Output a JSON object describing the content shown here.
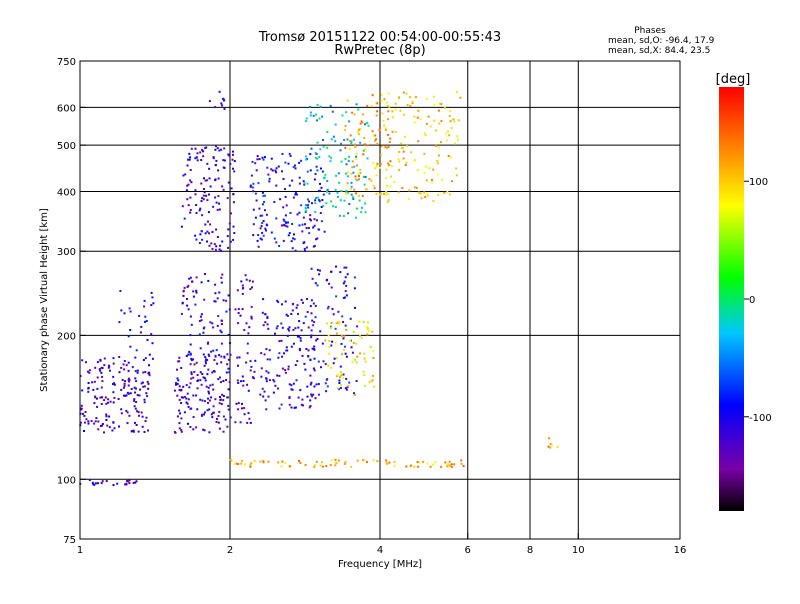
{
  "chart_data": {
    "type": "scatter",
    "title_line1": "Tromsø 20151122 00:54:00-00:55:43",
    "title_line2": "RwPretec (8p)",
    "stats": {
      "heading": "Phases",
      "line_o": "mean, sd,O: -96.4, 17.9",
      "line_x": "mean, sd,X:  84.4, 23.5"
    },
    "xlabel": "Frequency [MHz]",
    "ylabel": "Stationary phase Virtual Height [km]",
    "x_scale": "log",
    "y_scale": "log",
    "xlim": [
      1,
      16
    ],
    "ylim": [
      75,
      750
    ],
    "x_ticks": [
      1,
      2,
      4,
      6,
      8,
      10,
      16
    ],
    "x_tick_labels": [
      "1",
      "2",
      "4",
      "6",
      "8",
      "10",
      "16"
    ],
    "y_ticks": [
      75,
      100,
      200,
      300,
      400,
      500,
      600,
      750
    ],
    "y_tick_labels": [
      "75",
      "100",
      "200",
      "300",
      "400",
      "500",
      "600",
      "750"
    ],
    "x_gridlines": [
      2,
      4,
      6,
      8,
      10
    ],
    "y_gridlines": [
      100,
      200,
      300,
      400,
      500,
      600
    ],
    "grid": true,
    "colorbar": {
      "label": "[deg]",
      "range": [
        -180,
        180
      ],
      "ticks": [
        100,
        0,
        -100
      ],
      "tick_labels": [
        "100",
        "0",
        "-100"
      ],
      "colors": [
        "#000000",
        "#7a00a8",
        "#0000ff",
        "#00c8ff",
        "#00ff00",
        "#ffff00",
        "#ff8000",
        "#ff0000"
      ]
    },
    "series": [
      {
        "freq": [
          1.0,
          1.3
        ],
        "height": [
          97,
          100
        ],
        "phase": -105,
        "points": 22
      },
      {
        "freq": [
          1.0,
          1.38
        ],
        "height": [
          125,
          180
        ],
        "phase": -105,
        "points": 180
      },
      {
        "freq": [
          1.18,
          1.42
        ],
        "height": [
          175,
          255
        ],
        "phase": -100,
        "points": 30
      },
      {
        "freq": [
          1.55,
          2.02
        ],
        "height": [
          125,
          185
        ],
        "phase": -100,
        "points": 160
      },
      {
        "freq": [
          1.6,
          2.0
        ],
        "height": [
          180,
          270
        ],
        "phase": -100,
        "points": 80
      },
      {
        "freq": [
          2.05,
          2.25
        ],
        "height": [
          130,
          270
        ],
        "phase": -105,
        "points": 60
      },
      {
        "freq": [
          2.3,
          3.0
        ],
        "height": [
          140,
          240
        ],
        "phase": -95,
        "points": 150
      },
      {
        "freq": [
          2.9,
          3.6
        ],
        "height": [
          150,
          280
        ],
        "phase": -90,
        "points": 90
      },
      {
        "freq": [
          3.1,
          3.9
        ],
        "height": [
          150,
          215
        ],
        "phase": 90,
        "points": 70
      },
      {
        "freq": [
          1.6,
          2.05
        ],
        "height": [
          300,
          500
        ],
        "phase": -100,
        "points": 140
      },
      {
        "freq": [
          1.82,
          1.98
        ],
        "height": [
          590,
          650
        ],
        "phase": -100,
        "points": 10
      },
      {
        "freq": [
          2.2,
          3.1
        ],
        "height": [
          300,
          480
        ],
        "phase": -90,
        "points": 170
      },
      {
        "freq": [
          2.8,
          3.8
        ],
        "height": [
          350,
          610
        ],
        "phase": -20,
        "points": 120
      },
      {
        "freq": [
          3.4,
          4.2
        ],
        "height": [
          390,
          640
        ],
        "phase": 110,
        "points": 100
      },
      {
        "freq": [
          4.1,
          5.8
        ],
        "height": [
          380,
          650
        ],
        "phase": 100,
        "points": 130
      },
      {
        "freq": [
          2.0,
          5.9
        ],
        "height": [
          106,
          110
        ],
        "phase": 110,
        "points": 80
      },
      {
        "freq": [
          8.7,
          9.2
        ],
        "height": [
          115,
          122
        ],
        "phase": 120,
        "points": 6
      }
    ]
  }
}
